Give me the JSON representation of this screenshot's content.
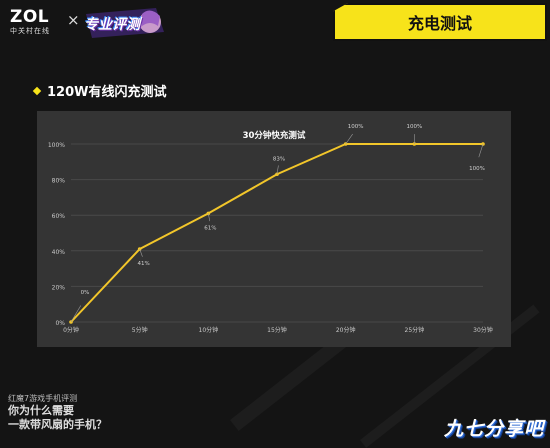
{
  "header": {
    "brand": "ZOL",
    "brand_sub": "中关村在线",
    "times": "×",
    "review_badge": "专业评测",
    "title": "充电测试"
  },
  "section": {
    "title": "120W有线闪充测试"
  },
  "footer": {
    "subtitle": "红魔7游戏手机评测",
    "line1": "你为什么需要",
    "line2": "一款带风扇的手机？",
    "watermark": "九七分享吧"
  },
  "colors": {
    "accent": "#f7e31a",
    "line": "#f2c62a",
    "panel": "#343434",
    "background": "#141414"
  },
  "chart_data": {
    "type": "line",
    "title": "30分钟快充测试",
    "categories": [
      "0分钟",
      "5分钟",
      "10分钟",
      "15分钟",
      "20分钟",
      "25分钟",
      "30分钟"
    ],
    "values": [
      0,
      41,
      61,
      83,
      100,
      100,
      100
    ],
    "data_labels": [
      "0%",
      "41%",
      "61%",
      "83%",
      "100%",
      "100%",
      "100%"
    ],
    "y_ticks": [
      "0%",
      "20%",
      "40%",
      "60%",
      "80%",
      "100%"
    ],
    "ylim": [
      0,
      100
    ],
    "grid": true,
    "xlabel": "",
    "ylabel": ""
  }
}
